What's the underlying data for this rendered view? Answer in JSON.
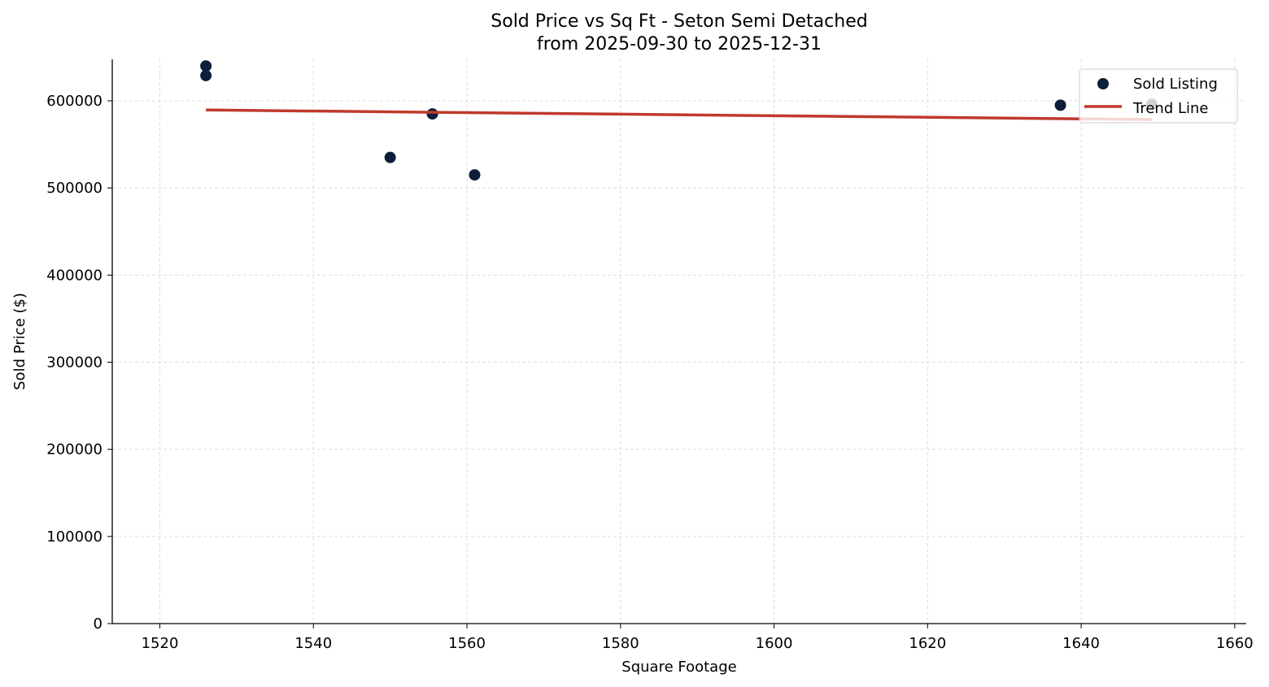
{
  "chart_data": {
    "type": "scatter",
    "title": "Sold Price vs Sq Ft - Seton Semi Detached",
    "subtitle": "from 2025-09-30 to 2025-12-31",
    "xlabel": "Square Footage",
    "ylabel": "Sold Price ($)",
    "xlim": [
      1513.8,
      1661.5
    ],
    "ylim": [
      0,
      647600
    ],
    "xticks": [
      1520,
      1540,
      1560,
      1580,
      1600,
      1620,
      1640,
      1660
    ],
    "yticks": [
      0,
      100000,
      200000,
      300000,
      400000,
      500000,
      600000
    ],
    "grid": true,
    "legend_position": "top-right",
    "series": [
      {
        "name": "Sold Listing",
        "kind": "scatter",
        "color": "#0b1f3a",
        "points": [
          {
            "x": 1526,
            "y": 640000
          },
          {
            "x": 1526,
            "y": 629000
          },
          {
            "x": 1550,
            "y": 535000
          },
          {
            "x": 1555.5,
            "y": 585000
          },
          {
            "x": 1561,
            "y": 515000
          },
          {
            "x": 1637.3,
            "y": 595000
          },
          {
            "x": 1649.2,
            "y": 596000
          }
        ]
      },
      {
        "name": "Trend Line",
        "kind": "line",
        "color": "#c0392b",
        "points": [
          {
            "x": 1526,
            "y": 589500
          },
          {
            "x": 1649.2,
            "y": 578500
          }
        ]
      }
    ]
  }
}
